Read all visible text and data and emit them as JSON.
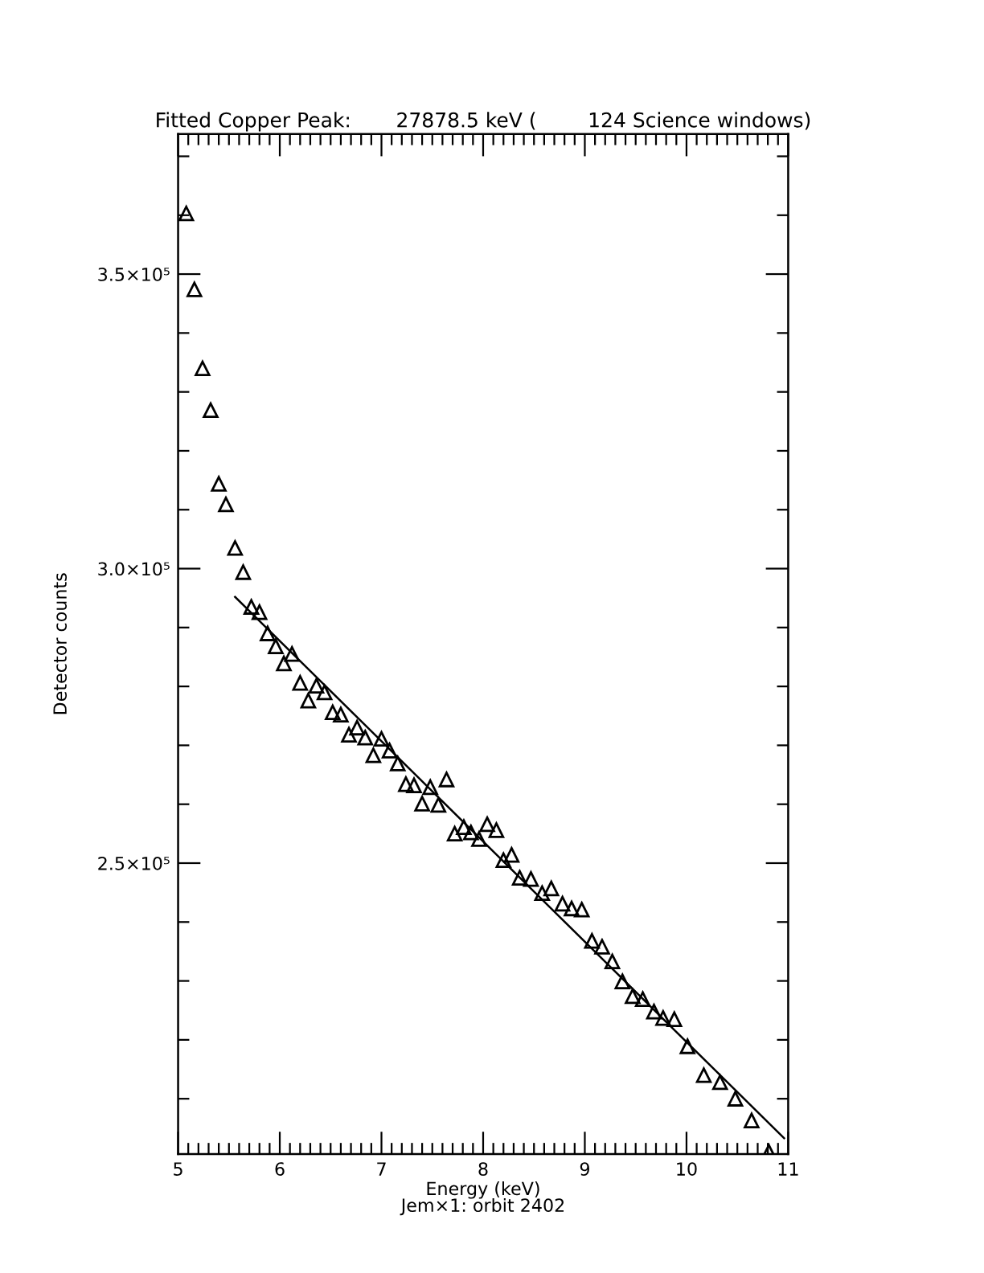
{
  "chart_data": {
    "type": "scatter",
    "title": "Fitted Copper Peak:       27878.5 keV (        124 Science windows)",
    "xlabel": "Energy (keV)",
    "ylabel": "Detector counts",
    "annotations": [
      "Jem×1: orbit 2402"
    ],
    "grid": false,
    "legend": false,
    "xlim": [
      5,
      11
    ],
    "ylim": [
      200600,
      373800
    ],
    "xticks": [
      5,
      {
        "value": 5.1,
        "label": null
      },
      {
        "value": 5.2,
        "label": null
      },
      {
        "value": 5.3,
        "label": null
      },
      {
        "value": 5.4,
        "label": null
      },
      {
        "value": 5.5,
        "label": null
      },
      {
        "value": 5.6,
        "label": null
      },
      {
        "value": 5.7,
        "label": null
      },
      {
        "value": 5.8,
        "label": null
      },
      {
        "value": 5.9,
        "label": null
      },
      6,
      {
        "value": 6.1,
        "label": null
      },
      {
        "value": 6.2,
        "label": null
      },
      {
        "value": 6.3,
        "label": null
      },
      {
        "value": 6.4,
        "label": null
      },
      {
        "value": 6.5,
        "label": null
      },
      {
        "value": 6.6,
        "label": null
      },
      {
        "value": 6.7,
        "label": null
      },
      {
        "value": 6.8,
        "label": null
      },
      {
        "value": 6.9,
        "label": null
      },
      7,
      {
        "value": 7.1,
        "label": null
      },
      {
        "value": 7.2,
        "label": null
      },
      {
        "value": 7.3,
        "label": null
      },
      {
        "value": 7.4,
        "label": null
      },
      {
        "value": 7.5,
        "label": null
      },
      {
        "value": 7.6,
        "label": null
      },
      {
        "value": 7.7,
        "label": null
      },
      {
        "value": 7.8,
        "label": null
      },
      {
        "value": 7.9,
        "label": null
      },
      8,
      {
        "value": 8.1,
        "label": null
      },
      {
        "value": 8.2,
        "label": null
      },
      {
        "value": 8.3,
        "label": null
      },
      {
        "value": 8.4,
        "label": null
      },
      {
        "value": 8.5,
        "label": null
      },
      {
        "value": 8.6,
        "label": null
      },
      {
        "value": 8.7,
        "label": null
      },
      {
        "value": 8.8,
        "label": null
      },
      {
        "value": 8.9,
        "label": null
      },
      9,
      {
        "value": 9.1,
        "label": null
      },
      {
        "value": 9.2,
        "label": null
      },
      {
        "value": 9.3,
        "label": null
      },
      {
        "value": 9.4,
        "label": null
      },
      {
        "value": 9.5,
        "label": null
      },
      {
        "value": 9.6,
        "label": null
      },
      {
        "value": 9.7,
        "label": null
      },
      {
        "value": 9.8,
        "label": null
      },
      {
        "value": 9.9,
        "label": null
      },
      10,
      {
        "value": 10.1,
        "label": null
      },
      {
        "value": 10.2,
        "label": null
      },
      {
        "value": 10.3,
        "label": null
      },
      {
        "value": 10.4,
        "label": null
      },
      {
        "value": 10.5,
        "label": null
      },
      {
        "value": 10.6,
        "label": null
      },
      {
        "value": 10.7,
        "label": null
      },
      {
        "value": 10.8,
        "label": null
      },
      {
        "value": 10.9,
        "label": null
      },
      11
    ],
    "yticks": [
      {
        "value": 210000,
        "label": null
      },
      {
        "value": 220000,
        "label": null
      },
      {
        "value": 230000,
        "label": null
      },
      {
        "value": 240000,
        "label": null
      },
      {
        "value": 250000,
        "label": "2.5×10⁵"
      },
      {
        "value": 260000,
        "label": null
      },
      {
        "value": 270000,
        "label": null
      },
      {
        "value": 280000,
        "label": null
      },
      {
        "value": 290000,
        "label": null
      },
      {
        "value": 300000,
        "label": "3.0×10⁵"
      },
      {
        "value": 310000,
        "label": null
      },
      {
        "value": 320000,
        "label": null
      },
      {
        "value": 330000,
        "label": null
      },
      {
        "value": 340000,
        "label": null
      },
      {
        "value": 350000,
        "label": "3.5×10⁵"
      },
      {
        "value": 360000,
        "label": null
      },
      {
        "value": 370000,
        "label": null
      }
    ],
    "series": [
      {
        "color": "#000000",
        "marker": "triangle",
        "x": [
          5.08,
          5.16,
          5.24,
          5.32,
          5.4,
          5.47,
          5.56,
          5.64,
          5.72,
          5.8,
          5.88,
          5.96,
          6.04,
          6.12,
          6.2,
          6.28,
          6.36,
          6.44,
          6.52,
          6.6,
          6.68,
          6.76,
          6.84,
          6.92,
          7.0,
          7.08,
          7.16,
          7.24,
          7.32,
          7.4,
          7.48,
          7.56,
          7.64,
          7.72,
          7.81,
          7.88,
          7.96,
          8.04,
          8.13,
          8.2,
          8.28,
          8.36,
          8.47,
          8.58,
          8.67,
          8.78,
          8.87,
          8.97,
          9.07,
          9.17,
          9.27,
          9.37,
          9.47,
          9.57,
          9.68,
          9.77,
          9.88,
          10.01,
          10.17,
          10.33,
          10.48,
          10.64,
          10.81
        ],
        "values": [
          360300,
          347400,
          334000,
          326900,
          314400,
          310900,
          303500,
          299400,
          293500,
          292600,
          289000,
          286800,
          283900,
          285500,
          280600,
          277600,
          280100,
          279000,
          275600,
          275200,
          271800,
          273000,
          271300,
          268300,
          271100,
          269100,
          266900,
          263400,
          263200,
          260100,
          262900,
          259900,
          264200,
          255000,
          256100,
          255200,
          254100,
          256600,
          255600,
          250500,
          251400,
          247500,
          247300,
          244900,
          245700,
          243100,
          242300,
          242100,
          236800,
          235800,
          233300,
          229900,
          227400,
          226900,
          224800,
          223700,
          223500,
          218900,
          214000,
          212800,
          210000,
          206300,
          201000
        ]
      },
      {
        "type": "line",
        "color": "#000000",
        "line_style": "solid",
        "x": [
          5.56,
          10.96
        ],
        "values": [
          295200,
          203300
        ]
      }
    ]
  }
}
